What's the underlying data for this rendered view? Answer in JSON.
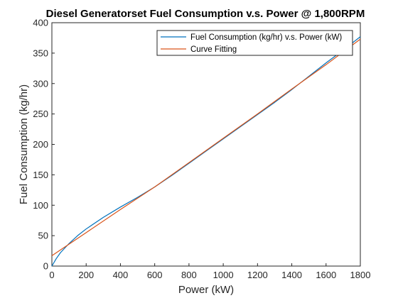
{
  "chart_data": {
    "type": "line",
    "title": "Diesel Generatorset Fuel Consumption v.s. Power @ 1,800RPM",
    "xlabel": "Power (kW)",
    "ylabel": "Fuel Consumption (kg/hr)",
    "xlim": [
      0,
      1800
    ],
    "ylim": [
      0,
      400
    ],
    "x_ticks": [
      "0",
      "200",
      "400",
      "600",
      "800",
      "1000",
      "1200",
      "1400",
      "1600",
      "1800"
    ],
    "y_ticks": [
      "0",
      "50",
      "100",
      "150",
      "200",
      "250",
      "300",
      "350",
      "400"
    ],
    "grid": false,
    "legend_position": "top-right",
    "series": [
      {
        "name": "Fuel Consumption (kg/hr) v.s. Power (kW)",
        "color": "#0072BD",
        "x": [
          0,
          25,
          50,
          100,
          150,
          200,
          300,
          400,
          500,
          600,
          700,
          800,
          900,
          1000,
          1100,
          1200,
          1300,
          1400,
          1500,
          1600,
          1700,
          1800
        ],
        "y": [
          0,
          12,
          22,
          37,
          50,
          61,
          80,
          97,
          113,
          130,
          149,
          169,
          189,
          209,
          229,
          249,
          269,
          290,
          312,
          334,
          355,
          377
        ]
      },
      {
        "name": "Curve Fitting",
        "color": "#D95319",
        "x": [
          0,
          200,
          400,
          600,
          800,
          1000,
          1200,
          1400,
          1600,
          1800
        ],
        "y": [
          17,
          55,
          93,
          130,
          170,
          210,
          250,
          291,
          331,
          373
        ]
      }
    ]
  }
}
